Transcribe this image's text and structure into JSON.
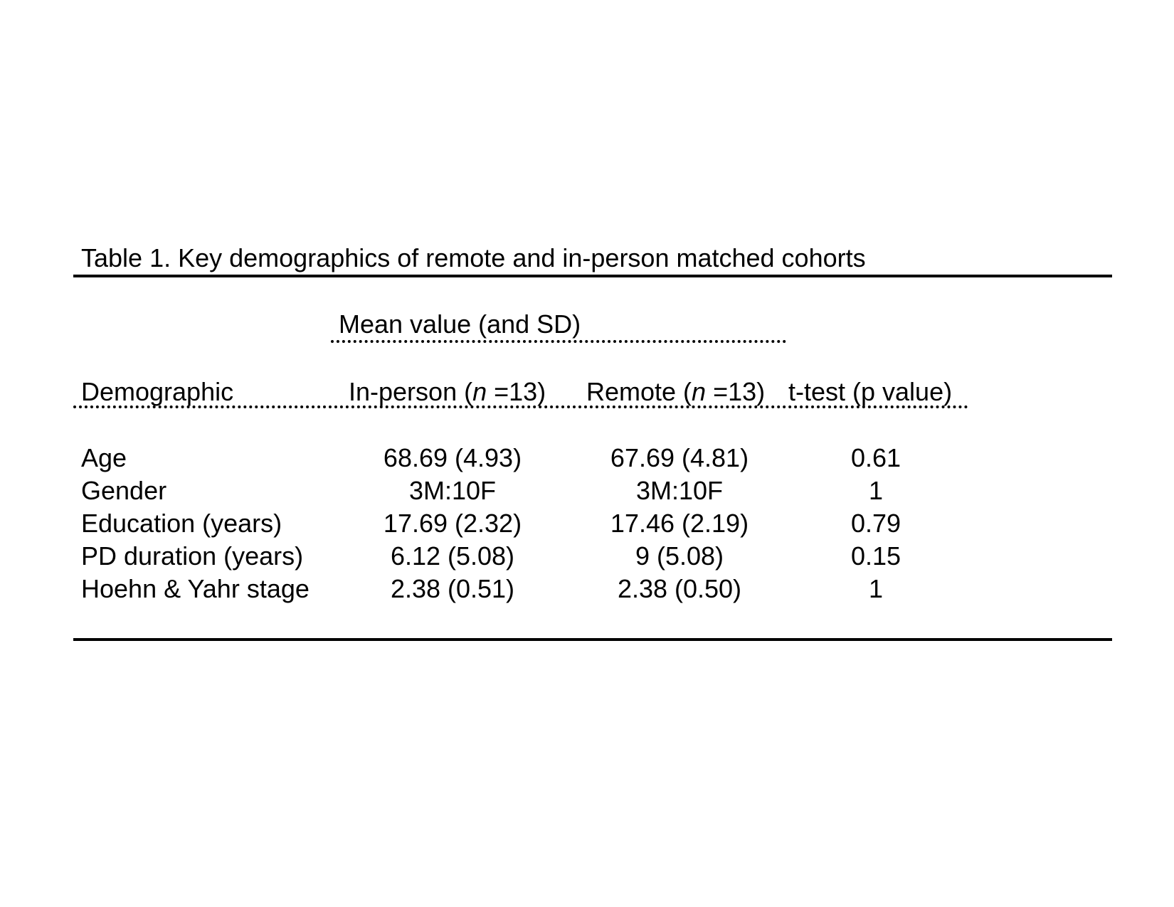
{
  "table": {
    "caption": "Table 1. Key demographics of remote and in-person matched cohorts",
    "group_header": "Mean value (and SD)",
    "columns": {
      "demographic": "Demographic",
      "in_person": {
        "prefix": "In-person (",
        "n_symbol": "n",
        "suffix": " =13)"
      },
      "remote": {
        "prefix": "Remote (",
        "n_symbol": "n",
        "suffix": " =13)"
      },
      "ttest": "t-test (p value)"
    },
    "rows": [
      {
        "label": "Age",
        "in_person": "68.69 (4.93)",
        "remote": "67.69 (4.81)",
        "p": "0.61"
      },
      {
        "label": "Gender",
        "in_person": "3M:10F",
        "remote": "3M:10F",
        "p": "1"
      },
      {
        "label": "Education (years)",
        "in_person": "17.69 (2.32)",
        "remote": "17.46 (2.19)",
        "p": "0.79"
      },
      {
        "label": "PD duration (years)",
        "in_person": "6.12 (5.08)",
        "remote": "9 (5.08)",
        "p": "0.15"
      },
      {
        "label": "Hoehn & Yahr stage",
        "in_person": "2.38 (0.51)",
        "remote": "2.38 (0.50)",
        "p": "1"
      }
    ]
  }
}
